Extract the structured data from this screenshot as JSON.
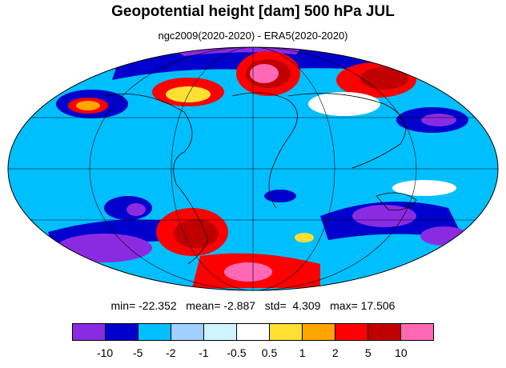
{
  "title": "Geopotential height [dam] 500 hPa JUL",
  "subtitle": "ngc2009(2020-2020) - ERA5(2020-2020)",
  "stats": {
    "min_label": "min=",
    "min": "-22.352",
    "mean_label": "mean=",
    "mean": "-2.887",
    "std_label": "std=",
    "std": "4.309",
    "max_label": "max=",
    "max": "17.506"
  },
  "colorbar": {
    "colors": [
      "#8a2be2",
      "#0000cd",
      "#00bfff",
      "#9fcfff",
      "#d0f4ff",
      "#ffffff",
      "#ffe033",
      "#ffa500",
      "#ff0000",
      "#c00000",
      "#ff69b4"
    ],
    "labels": [
      "-10",
      "-5",
      "-2",
      "-1",
      "-0.5",
      "0.5",
      "1",
      "2",
      "5",
      "10"
    ]
  },
  "map": {
    "projection": "Mollweide",
    "background_color": "#00bfff"
  }
}
